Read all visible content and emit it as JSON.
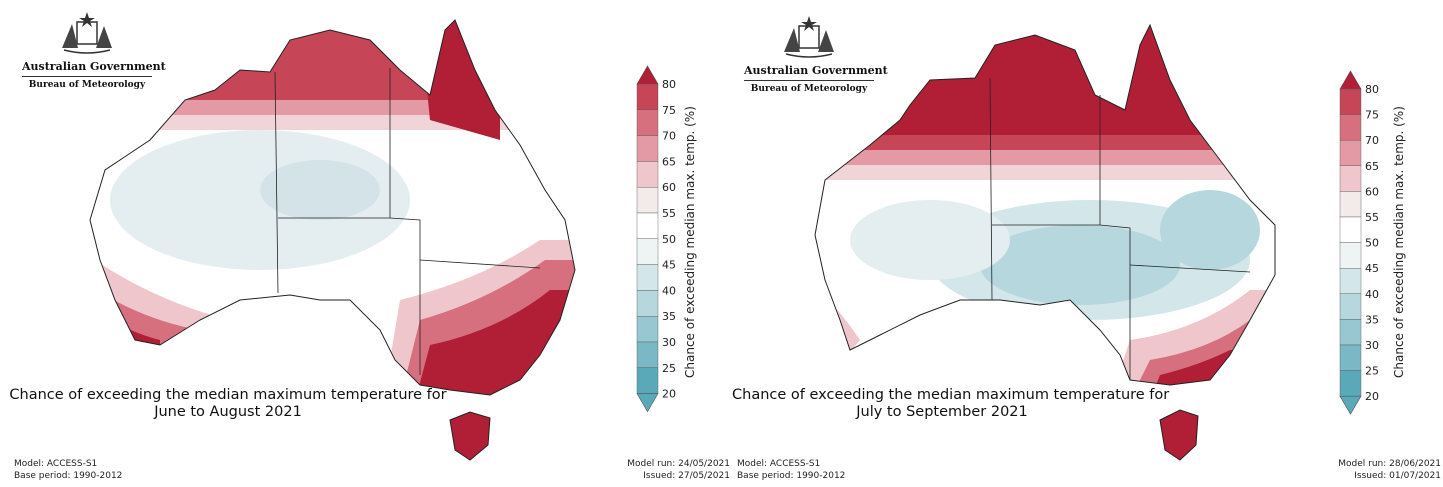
{
  "maps": [
    {
      "logo": {
        "gov": "Australian Government",
        "bom": "Bureau of Meteorology"
      },
      "caption_line1": "Chance of exceeding the median maximum temperature for",
      "caption_line2": "June to August 2021",
      "model": "Model: ACCESS-S1",
      "base_period": "Base period: 1990-2012",
      "model_run": "Model run: 24/05/2021",
      "issued": "Issued: 27/05/2021",
      "colorbar_title": "Chance of exceeding median max. temp. (%)",
      "colorbar_ticks": [
        "80",
        "75",
        "70",
        "65",
        "60",
        "55",
        "50",
        "45",
        "40",
        "35",
        "30",
        "25",
        "20"
      ]
    },
    {
      "logo": {
        "gov": "Australian Government",
        "bom": "Bureau of Meteorology"
      },
      "caption_line1": "Chance of exceeding the median maximum temperature for",
      "caption_line2": "July to September 2021",
      "model": "Model: ACCESS-S1",
      "base_period": "Base period: 1990-2012",
      "model_run": "Model run: 28/06/2021",
      "issued": "Issued: 01/07/2021",
      "colorbar_title": "Chance of exceeding median max. temp. (%)",
      "colorbar_ticks": [
        "80",
        "75",
        "70",
        "65",
        "60",
        "55",
        "50",
        "45",
        "40",
        "35",
        "30",
        "25",
        "20"
      ]
    }
  ],
  "colorscale": [
    "#5aa9b8",
    "#79b8c4",
    "#97c8d1",
    "#b5d7dd",
    "#d3e6ea",
    "#eef3f4",
    "#ffffff",
    "#f3eaea",
    "#efc6cb",
    "#e49aa4",
    "#d6707e",
    "#c64658",
    "#b11f37"
  ]
}
